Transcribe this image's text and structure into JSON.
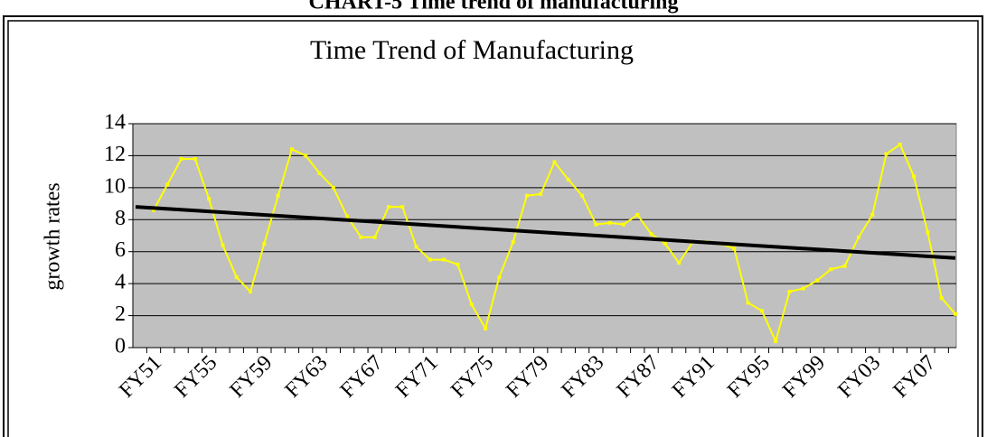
{
  "heading": "CHART-5 Time trend of manufacturing",
  "chart_data": {
    "type": "line",
    "title": "Time Trend of Manufacturing",
    "y_label": "growth rates",
    "categories": [
      "FY51",
      null,
      null,
      null,
      "FY55",
      null,
      null,
      null,
      "FY59",
      null,
      null,
      null,
      "FY63",
      null,
      null,
      null,
      "FY67",
      null,
      null,
      null,
      "FY71",
      null,
      null,
      null,
      "FY75",
      null,
      null,
      null,
      "FY79",
      null,
      null,
      null,
      "FY83",
      null,
      null,
      null,
      "FY87",
      null,
      null,
      null,
      "FY91",
      null,
      null,
      null,
      "FY95",
      null,
      null,
      null,
      "FY99",
      null,
      null,
      null,
      "FY03",
      null,
      null,
      null,
      "FY07",
      null,
      null
    ],
    "series": [
      {
        "name": "Manufacturing",
        "color": "#ffff00",
        "values": [
          8.6,
          10.2,
          11.8,
          11.8,
          9.3,
          6.4,
          4.4,
          3.5,
          6.5,
          9.5,
          12.4,
          12.0,
          10.9,
          10.0,
          8.2,
          6.9,
          6.9,
          8.8,
          8.8,
          6.3,
          5.5,
          5.5,
          5.2,
          2.7,
          1.2,
          4.4,
          6.6,
          9.5,
          9.6,
          11.6,
          10.5,
          9.5,
          7.7,
          7.8,
          7.7,
          8.3,
          7.1,
          6.5,
          5.3,
          6.6,
          6.6,
          6.5,
          6.2,
          2.8,
          2.3,
          0.4,
          3.5,
          3.7,
          4.2,
          4.9,
          5.1,
          6.9,
          8.3,
          12.1,
          12.7,
          10.7,
          7.2,
          3.1,
          2.1
        ]
      }
    ],
    "trend": {
      "start": 8.8,
      "end": 5.6,
      "color": "#000000"
    },
    "ylim": [
      0,
      14
    ],
    "yticks": [
      0,
      2,
      4,
      6,
      8,
      10,
      12,
      14
    ],
    "grid": true,
    "plot_bg": "#c0c0c0"
  }
}
